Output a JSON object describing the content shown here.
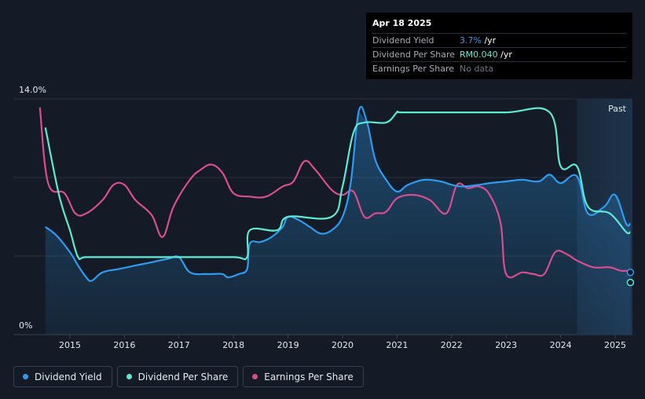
{
  "tooltip": {
    "date": "Apr 18 2025",
    "rows": [
      {
        "label": "Dividend Yield",
        "value": "3.7%",
        "unit": " /yr"
      },
      {
        "label": "Dividend Per Share",
        "value": "RM0.040",
        "unit": " /yr"
      },
      {
        "label": "Earnings Per Share",
        "value": "No data",
        "unit": ""
      }
    ]
  },
  "past_label": "Past",
  "legend": [
    {
      "label": "Dividend Yield",
      "color": "#2d9cf0"
    },
    {
      "label": "Dividend Per Share",
      "color": "#5ee9d2"
    },
    {
      "label": "Earnings Per Share",
      "color": "#d84e8e"
    }
  ],
  "chart_data": {
    "type": "line",
    "title": "",
    "xlabel": "",
    "ylabel": "",
    "y_tick_labels": [
      "14.0%",
      "0%"
    ],
    "ylim": [
      0,
      14.0
    ],
    "xlim": [
      2014.4,
      2025.3
    ],
    "x_tick_labels": [
      "2015",
      "2016",
      "2017",
      "2018",
      "2019",
      "2020",
      "2021",
      "2022",
      "2023",
      "2024",
      "2025"
    ],
    "x_ticks": [
      2015,
      2016,
      2017,
      2018,
      2019,
      2020,
      2021,
      2022,
      2023,
      2024,
      2025
    ],
    "past_region_start": 2024.3,
    "series": [
      {
        "name": "Dividend Yield",
        "color": "#2d9cf0",
        "x": [
          2014.55,
          2014.75,
          2015.0,
          2015.15,
          2015.3,
          2015.4,
          2015.6,
          2015.9,
          2016.2,
          2016.5,
          2016.8,
          2017.0,
          2017.2,
          2017.5,
          2017.6,
          2017.8,
          2017.9,
          2018.1,
          2018.25,
          2018.3,
          2018.5,
          2018.7,
          2018.9,
          2019.0,
          2019.2,
          2019.4,
          2019.6,
          2019.8,
          2020.0,
          2020.15,
          2020.3,
          2020.45,
          2020.6,
          2020.8,
          2021.0,
          2021.2,
          2021.5,
          2021.8,
          2022.0,
          2022.2,
          2022.5,
          2022.7,
          2023.0,
          2023.3,
          2023.6,
          2023.8,
          2024.0,
          2024.3,
          2024.5,
          2024.8,
          2025.0,
          2025.2,
          2025.28
        ],
        "y": [
          6.4,
          5.9,
          4.9,
          4.1,
          3.4,
          3.2,
          3.7,
          3.9,
          4.1,
          4.3,
          4.5,
          4.6,
          3.7,
          3.6,
          3.6,
          3.6,
          3.4,
          3.6,
          3.9,
          5.4,
          5.5,
          5.8,
          6.4,
          7.0,
          6.8,
          6.4,
          6.0,
          6.2,
          7.0,
          9.0,
          13.3,
          12.6,
          10.4,
          9.2,
          8.5,
          8.9,
          9.2,
          9.1,
          8.9,
          8.8,
          8.9,
          9.0,
          9.1,
          9.2,
          9.1,
          9.5,
          9.0,
          9.4,
          7.2,
          7.6,
          8.3,
          6.6,
          6.6
        ]
      },
      {
        "name": "Dividend Per Share",
        "color": "#5ee9d2",
        "x": [
          2014.55,
          2014.8,
          2015.0,
          2015.15,
          2015.3,
          2016.0,
          2017.0,
          2018.0,
          2018.25,
          2018.3,
          2018.8,
          2019.0,
          2019.8,
          2020.0,
          2020.2,
          2020.4,
          2020.8,
          2021.0,
          2021.1,
          2022.0,
          2023.0,
          2023.8,
          2024.0,
          2024.3,
          2024.5,
          2024.9,
          2025.2,
          2025.28
        ],
        "y": [
          12.3,
          8.3,
          6.2,
          4.6,
          4.6,
          4.6,
          4.6,
          4.6,
          4.6,
          6.2,
          6.2,
          7.0,
          7.0,
          8.8,
          12.0,
          12.6,
          12.6,
          13.2,
          13.2,
          13.2,
          13.2,
          13.2,
          10.0,
          10.0,
          7.6,
          7.2,
          6.1,
          6.1
        ]
      },
      {
        "name": "Earnings Per Share",
        "color": "#d84e8e",
        "x": [
          2014.45,
          2014.6,
          2014.9,
          2015.1,
          2015.3,
          2015.6,
          2015.8,
          2016.0,
          2016.2,
          2016.5,
          2016.7,
          2016.9,
          2017.2,
          2017.4,
          2017.6,
          2017.8,
          2018.0,
          2018.3,
          2018.6,
          2018.9,
          2019.1,
          2019.3,
          2019.5,
          2019.8,
          2020.0,
          2020.2,
          2020.4,
          2020.6,
          2020.8,
          2021.0,
          2021.3,
          2021.6,
          2021.9,
          2022.1,
          2022.3,
          2022.5,
          2022.7,
          2022.9,
          2023.0,
          2023.3,
          2023.5,
          2023.7,
          2023.9,
          2024.1,
          2024.3,
          2024.6,
          2024.9,
          2025.1,
          2025.25
        ],
        "y": [
          13.5,
          9.0,
          8.4,
          7.2,
          7.2,
          8.0,
          8.9,
          8.9,
          8.0,
          7.1,
          5.8,
          7.6,
          9.2,
          9.8,
          10.1,
          9.6,
          8.4,
          8.2,
          8.2,
          8.8,
          9.1,
          10.3,
          9.8,
          8.6,
          8.3,
          8.5,
          7.0,
          7.2,
          7.3,
          8.1,
          8.3,
          8.0,
          7.2,
          8.9,
          8.7,
          8.8,
          8.3,
          6.6,
          3.6,
          3.7,
          3.6,
          3.6,
          4.9,
          4.8,
          4.4,
          4.0,
          4.0,
          3.8,
          3.8
        ]
      }
    ]
  }
}
